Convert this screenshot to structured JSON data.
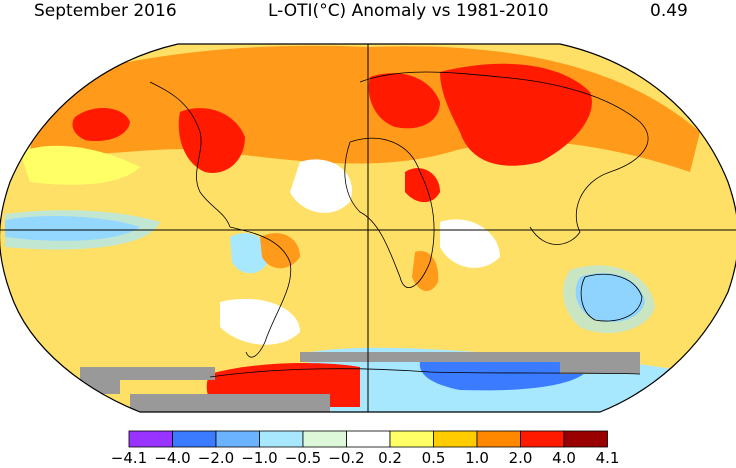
{
  "header": {
    "month_year": "September 2016",
    "title": "L-OTI(°C) Anomaly vs 1981-2010",
    "global_mean": "0.49"
  },
  "legend": {
    "colors": [
      "#9933ff",
      "#3a7bff",
      "#6cb3ff",
      "#a7e8ff",
      "#dcf8d8",
      "#ffffff",
      "#ffff66",
      "#ffcc00",
      "#ff8800",
      "#ff1a00",
      "#990000"
    ],
    "ticks": [
      "−4.1",
      "−4.0",
      "−2.0",
      "−1.0",
      "−0.5",
      "−0.2",
      "0.2",
      "0.5",
      "1.0",
      "2.0",
      "4.0",
      "4.1"
    ]
  },
  "map": {
    "projection": "Robinson",
    "no_data_color": "#999999",
    "ocean_base_color": "#fff9a0",
    "gridlines": "equator and prime meridian"
  }
}
